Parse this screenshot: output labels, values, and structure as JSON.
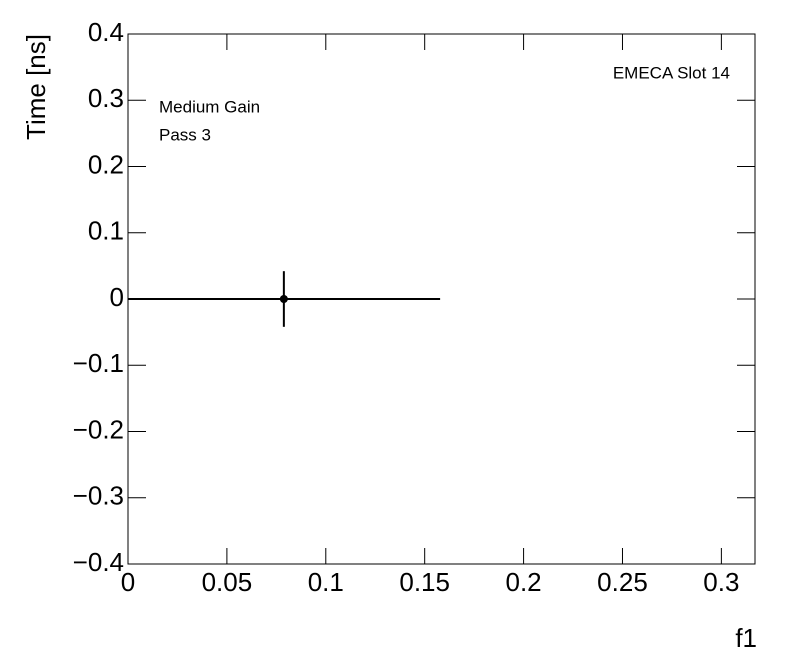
{
  "chart_data": {
    "type": "scatter",
    "x_label": "f1",
    "y_label": "Time [ns]",
    "annotations": [
      "EMECA Slot 14",
      "Medium Gain",
      "Pass 3"
    ],
    "x": [
      0.0788
    ],
    "values": [
      0
    ],
    "xerr": [
      0.079
    ],
    "yerr": [
      0.042
    ],
    "color": "#000000",
    "xlim": [
      0,
      0.317
    ],
    "xticks": [
      0,
      0.05,
      0.1,
      0.15,
      0.2,
      0.25,
      0.3
    ],
    "ylim": [
      -0.4,
      0.4
    ],
    "yticks": [
      {
        "value": -0.4,
        "label": "−0.4"
      },
      {
        "value": -0.3,
        "label": "−0.3"
      },
      {
        "value": -0.2,
        "label": "−0.2"
      },
      {
        "value": -0.1,
        "label": "−0.1"
      },
      0,
      0.1,
      0.2,
      0.3,
      0.4
    ],
    "grid": false
  }
}
